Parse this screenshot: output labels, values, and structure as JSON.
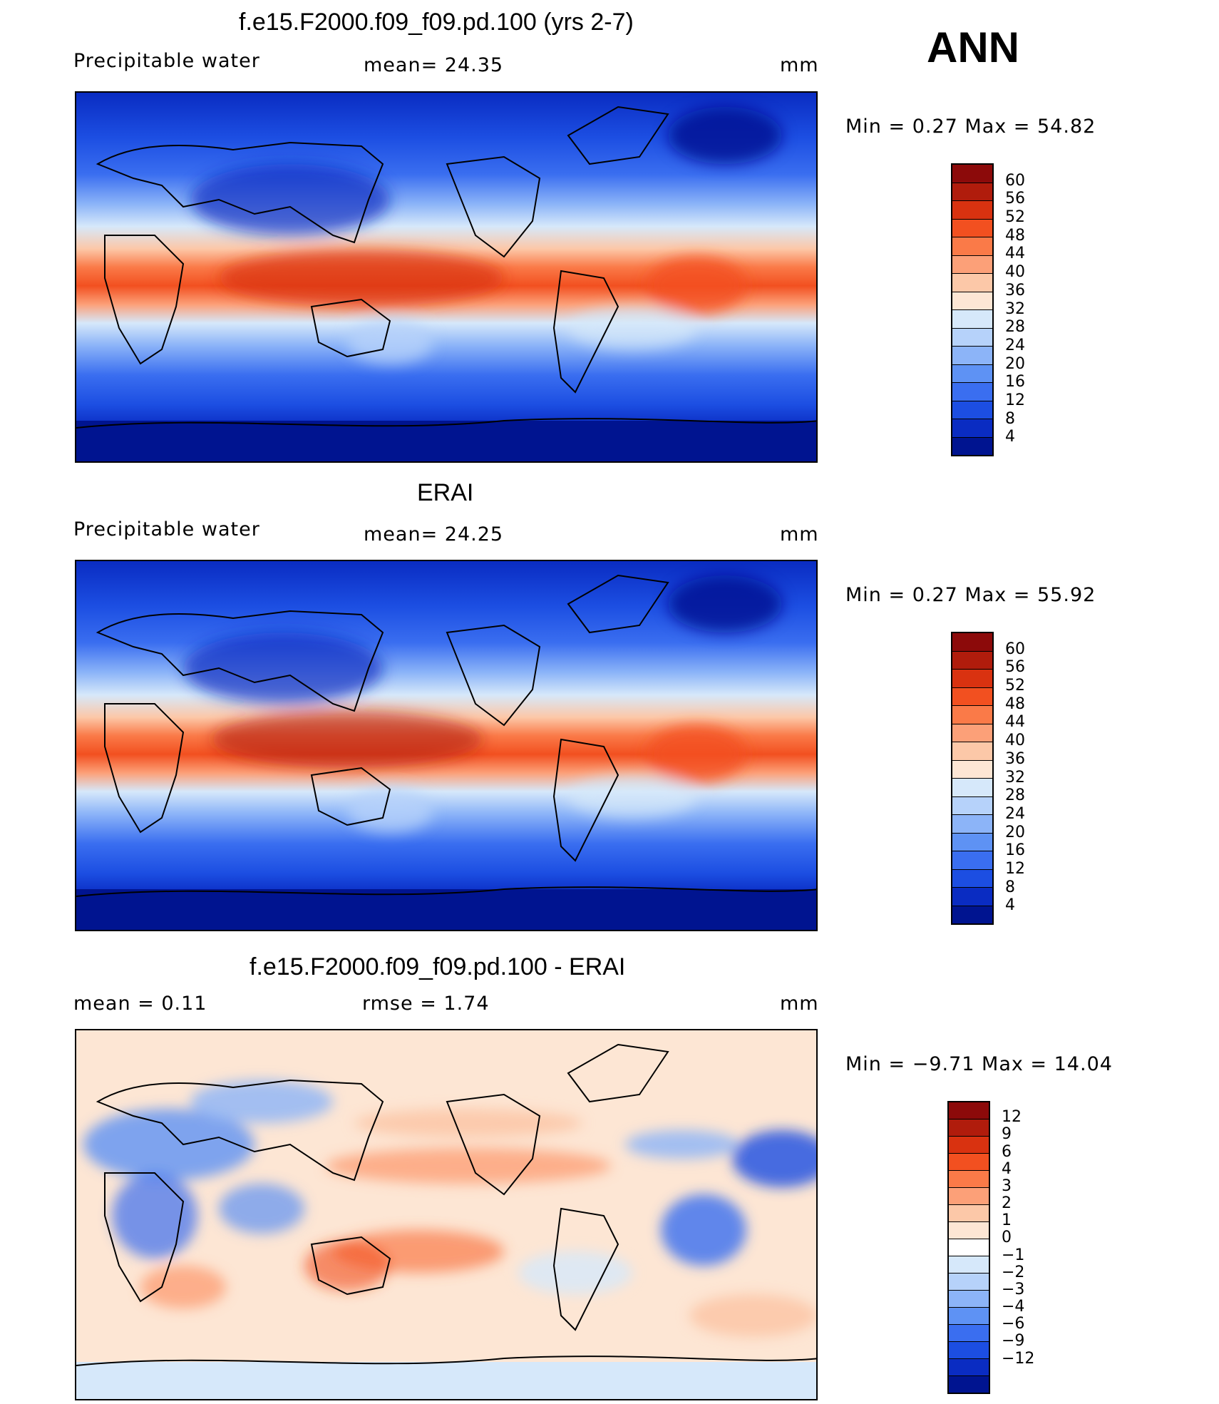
{
  "season": "ANN",
  "panels": [
    {
      "title": "f.e15.F2000.f09_f09.pd.100 (yrs 2-7)",
      "left_label": "Precipitable  water",
      "mid_label": "mean=   24.35",
      "units": "mm",
      "minmax": "Min  =     0.27  Max  =    54.82",
      "colorbar": {
        "colors": [
          "#8c0a0a",
          "#b01c0c",
          "#d93210",
          "#f25020",
          "#fa7a48",
          "#fca078",
          "#fcc8a8",
          "#fde6d4",
          "#d6e8fa",
          "#b6d2fa",
          "#8cb4f8",
          "#5e92f4",
          "#3a6ef0",
          "#1c4ee2",
          "#0a2cc2",
          "#001490"
        ],
        "ticks": [
          "60",
          "56",
          "52",
          "48",
          "44",
          "40",
          "36",
          "32",
          "28",
          "24",
          "20",
          "16",
          "12",
          "8",
          "4"
        ]
      }
    },
    {
      "title": "ERAI",
      "left_label": "Precipitable  water",
      "mid_label": "mean=   24.25",
      "units": "mm",
      "minmax": "Min  =     0.27  Max  =    55.92",
      "colorbar": {
        "colors": [
          "#8c0a0a",
          "#b01c0c",
          "#d93210",
          "#f25020",
          "#fa7a48",
          "#fca078",
          "#fcc8a8",
          "#fde6d4",
          "#d6e8fa",
          "#b6d2fa",
          "#8cb4f8",
          "#5e92f4",
          "#3a6ef0",
          "#1c4ee2",
          "#0a2cc2",
          "#001490"
        ],
        "ticks": [
          "60",
          "56",
          "52",
          "48",
          "44",
          "40",
          "36",
          "32",
          "28",
          "24",
          "20",
          "16",
          "12",
          "8",
          "4"
        ]
      }
    },
    {
      "title": "f.e15.F2000.f09_f09.pd.100 - ERAI",
      "left_label": "mean  =     0.11",
      "mid_label": "rmse  =     1.74",
      "units": "mm",
      "minmax": "Min  =   −9.71  Max  =    14.04",
      "colorbar": {
        "colors": [
          "#8c0a0a",
          "#b01c0c",
          "#d93210",
          "#f25020",
          "#fa7a48",
          "#fca078",
          "#fcc8a8",
          "#fde6d4",
          "#ffffff",
          "#d6e8fa",
          "#b6d2fa",
          "#8cb4f8",
          "#5e92f4",
          "#3a6ef0",
          "#1c4ee2",
          "#0a2cc2",
          "#001490"
        ],
        "ticks": [
          "12",
          "9",
          "6",
          "4",
          "3",
          "2",
          "1",
          "0",
          "−1",
          "−2",
          "−3",
          "−4",
          "−6",
          "−9",
          "−12"
        ]
      }
    }
  ]
}
